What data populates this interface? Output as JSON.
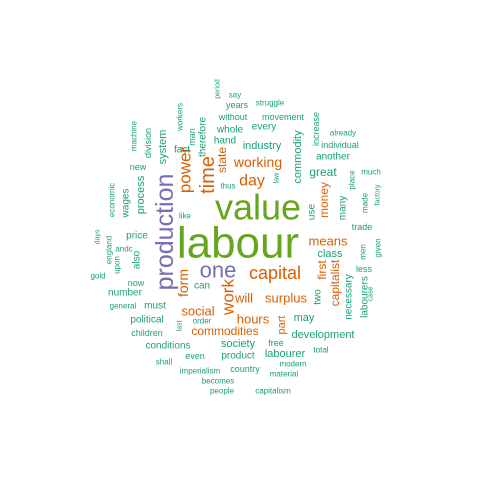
{
  "palette": {
    "green": "#66a61e",
    "purple": "#7570b3",
    "orange": "#d95f02",
    "teal": "#1b9e77"
  },
  "words": [
    {
      "text": "labour",
      "color": "green"
    },
    {
      "text": "value",
      "color": "green"
    },
    {
      "text": "production",
      "color": "purple"
    },
    {
      "text": "one",
      "color": "purple"
    },
    {
      "text": "capital",
      "color": "orange"
    },
    {
      "text": "time",
      "color": "orange"
    },
    {
      "text": "power",
      "color": "orange"
    },
    {
      "text": "work",
      "color": "orange"
    },
    {
      "text": "form",
      "color": "orange"
    },
    {
      "text": "day",
      "color": "orange"
    },
    {
      "text": "working",
      "color": "orange"
    },
    {
      "text": "means",
      "color": "orange"
    },
    {
      "text": "surplus",
      "color": "orange"
    },
    {
      "text": "will",
      "color": "orange"
    },
    {
      "text": "hours",
      "color": "orange"
    },
    {
      "text": "social",
      "color": "orange"
    },
    {
      "text": "commodities",
      "color": "orange"
    },
    {
      "text": "money",
      "color": "orange"
    },
    {
      "text": "state",
      "color": "orange"
    },
    {
      "text": "capitalist",
      "color": "orange"
    },
    {
      "text": "first",
      "color": "orange"
    },
    {
      "text": "part",
      "color": "orange"
    },
    {
      "text": "great",
      "color": "teal"
    },
    {
      "text": "class",
      "color": "teal"
    },
    {
      "text": "may",
      "color": "teal"
    },
    {
      "text": "industry",
      "color": "teal"
    },
    {
      "text": "society",
      "color": "teal"
    },
    {
      "text": "development",
      "color": "teal"
    },
    {
      "text": "commodity",
      "color": "teal"
    },
    {
      "text": "labourer",
      "color": "teal"
    },
    {
      "text": "product",
      "color": "teal"
    },
    {
      "text": "process",
      "color": "teal"
    },
    {
      "text": "system",
      "color": "teal"
    },
    {
      "text": "price",
      "color": "teal"
    },
    {
      "text": "another",
      "color": "teal"
    },
    {
      "text": "many",
      "color": "teal"
    },
    {
      "text": "use",
      "color": "teal"
    },
    {
      "text": "necessary",
      "color": "teal"
    },
    {
      "text": "labourers",
      "color": "teal"
    },
    {
      "text": "two",
      "color": "teal"
    },
    {
      "text": "can",
      "color": "teal"
    },
    {
      "text": "whole",
      "color": "teal"
    },
    {
      "text": "every",
      "color": "teal"
    },
    {
      "text": "therefore",
      "color": "teal"
    },
    {
      "text": "fact",
      "color": "teal"
    },
    {
      "text": "hand",
      "color": "teal"
    },
    {
      "text": "years",
      "color": "teal"
    },
    {
      "text": "political",
      "color": "teal"
    },
    {
      "text": "must",
      "color": "teal"
    },
    {
      "text": "conditions",
      "color": "teal"
    },
    {
      "text": "even",
      "color": "teal"
    },
    {
      "text": "number",
      "color": "teal"
    },
    {
      "text": "also",
      "color": "teal"
    },
    {
      "text": "wages",
      "color": "teal"
    },
    {
      "text": "new",
      "color": "teal"
    },
    {
      "text": "division",
      "color": "teal"
    },
    {
      "text": "now",
      "color": "teal"
    },
    {
      "text": "without",
      "color": "teal"
    },
    {
      "text": "movement",
      "color": "teal"
    },
    {
      "text": "struggle",
      "color": "teal"
    },
    {
      "text": "say",
      "color": "teal"
    },
    {
      "text": "period",
      "color": "teal"
    },
    {
      "text": "man",
      "color": "teal"
    },
    {
      "text": "workers",
      "color": "teal"
    },
    {
      "text": "machine",
      "color": "teal"
    },
    {
      "text": "economic",
      "color": "teal"
    },
    {
      "text": "england",
      "color": "teal"
    },
    {
      "text": "days",
      "color": "teal"
    },
    {
      "text": "gold",
      "color": "teal"
    },
    {
      "text": "andc",
      "color": "teal"
    },
    {
      "text": "upon",
      "color": "teal"
    },
    {
      "text": "general",
      "color": "teal"
    },
    {
      "text": "children",
      "color": "teal"
    },
    {
      "text": "shall",
      "color": "teal"
    },
    {
      "text": "imperialism",
      "color": "teal"
    },
    {
      "text": "becomes",
      "color": "teal"
    },
    {
      "text": "people",
      "color": "teal"
    },
    {
      "text": "capitalism",
      "color": "teal"
    },
    {
      "text": "country",
      "color": "teal"
    },
    {
      "text": "material",
      "color": "teal"
    },
    {
      "text": "modern",
      "color": "teal"
    },
    {
      "text": "total",
      "color": "teal"
    },
    {
      "text": "free",
      "color": "teal"
    },
    {
      "text": "order",
      "color": "teal"
    },
    {
      "text": "last",
      "color": "teal"
    },
    {
      "text": "like",
      "color": "teal"
    },
    {
      "text": "thus",
      "color": "teal"
    },
    {
      "text": "law",
      "color": "teal"
    },
    {
      "text": "increase",
      "color": "teal"
    },
    {
      "text": "individual",
      "color": "teal"
    },
    {
      "text": "already",
      "color": "teal"
    },
    {
      "text": "place",
      "color": "teal"
    },
    {
      "text": "much",
      "color": "teal"
    },
    {
      "text": "made",
      "color": "teal"
    },
    {
      "text": "factory",
      "color": "teal"
    },
    {
      "text": "men",
      "color": "teal"
    },
    {
      "text": "given",
      "color": "teal"
    },
    {
      "text": "trade",
      "color": "teal"
    },
    {
      "text": "less",
      "color": "teal"
    },
    {
      "text": "case",
      "color": "teal"
    }
  ]
}
